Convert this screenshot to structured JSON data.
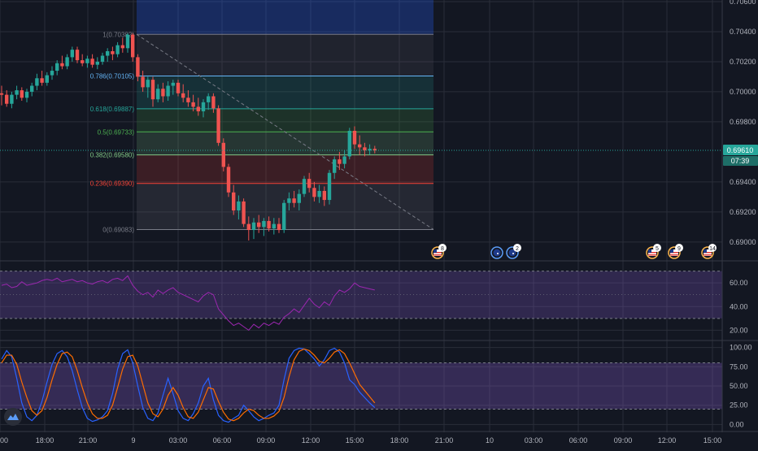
{
  "colors": {
    "background": "#131722",
    "grid": "#2a2e39",
    "bull": "#26a69a",
    "bear": "#ef5350",
    "rsi_line": "#9c27b0",
    "rsi_band": "#7e57c2",
    "stoch_k": "#2962ff",
    "stoch_d": "#ff6d00",
    "price_line": "#26a69a"
  },
  "chart_data": [
    {
      "type": "candlestick",
      "name": "price",
      "y_ticks": [
        "0.70600",
        "0.70400",
        "0.70200",
        "0.70000",
        "0.69800",
        "0.69400",
        "0.69200",
        "0.69000"
      ],
      "ylim": [
        0.6888,
        0.706
      ],
      "x_tick_labels": [
        "00",
        "18:00",
        "21:00",
        "9",
        "03:00",
        "06:00",
        "09:00",
        "12:00",
        "15:00",
        "18:00",
        "21:00",
        "10",
        "03:00",
        "06:00",
        "09:00",
        "12:00",
        "15:00"
      ],
      "current_price": "0.69610",
      "countdown": "07:39",
      "fib_levels": [
        {
          "label": "1(0.70382)",
          "ratio": 1,
          "price": 0.70382,
          "color": "#787b86"
        },
        {
          "label": "0.786(0.70105)",
          "ratio": 0.786,
          "price": 0.70105,
          "color": "#64b5f6"
        },
        {
          "label": "0.618(0.69887)",
          "ratio": 0.618,
          "price": 0.69887,
          "color": "#26a69a"
        },
        {
          "label": "0.5(0.69733)",
          "ratio": 0.5,
          "price": 0.69733,
          "color": "#4caf50"
        },
        {
          "label": "0.382(0.69580)",
          "ratio": 0.382,
          "price": 0.6958,
          "color": "#81c784"
        },
        {
          "label": "0.236(0.69390)",
          "ratio": 0.236,
          "price": 0.6939,
          "color": "#f44336"
        },
        {
          "label": "0(0.69083)",
          "ratio": 0,
          "price": 0.69083,
          "color": "#787b86"
        }
      ],
      "events": [
        {
          "flag": "us",
          "count": "8"
        },
        {
          "flag": "au",
          "count": ""
        },
        {
          "flag": "au",
          "count": "2"
        },
        {
          "flag": "us",
          "count": "5"
        },
        {
          "flag": "us",
          "count": "9"
        },
        {
          "flag": "us",
          "count": "14"
        }
      ],
      "candles": [
        [
          0.6999,
          0.7004,
          0.6991,
          0.6998
        ],
        [
          0.6998,
          0.7001,
          0.699,
          0.6992
        ],
        [
          0.6992,
          0.7,
          0.6989,
          0.6998
        ],
        [
          0.6998,
          0.7004,
          0.6995,
          0.7001
        ],
        [
          0.7001,
          0.7003,
          0.6994,
          0.6996
        ],
        [
          0.6996,
          0.7002,
          0.6993,
          0.7
        ],
        [
          0.7,
          0.7006,
          0.6997,
          0.7004
        ],
        [
          0.7004,
          0.7012,
          0.7001,
          0.7009
        ],
        [
          0.7009,
          0.7014,
          0.7004,
          0.7006
        ],
        [
          0.7006,
          0.7013,
          0.7004,
          0.7011
        ],
        [
          0.7011,
          0.7017,
          0.7008,
          0.7014
        ],
        [
          0.7014,
          0.7021,
          0.7011,
          0.7019
        ],
        [
          0.7019,
          0.7024,
          0.7015,
          0.7017
        ],
        [
          0.7017,
          0.7025,
          0.7015,
          0.7023
        ],
        [
          0.7023,
          0.703,
          0.702,
          0.7028
        ],
        [
          0.7028,
          0.703,
          0.7019,
          0.7021
        ],
        [
          0.7021,
          0.7025,
          0.7017,
          0.7019
        ],
        [
          0.7019,
          0.7024,
          0.7016,
          0.7022
        ],
        [
          0.7022,
          0.7025,
          0.7016,
          0.7018
        ],
        [
          0.7018,
          0.7023,
          0.7015,
          0.702
        ],
        [
          0.702,
          0.7026,
          0.7018,
          0.7024
        ],
        [
          0.7024,
          0.7029,
          0.702,
          0.7027
        ],
        [
          0.7027,
          0.703,
          0.7021,
          0.7025
        ],
        [
          0.7025,
          0.7033,
          0.7023,
          0.7031
        ],
        [
          0.7031,
          0.7036,
          0.7026,
          0.7029
        ],
        [
          0.7029,
          0.7039,
          0.7026,
          0.7038
        ],
        [
          0.7038,
          0.7039,
          0.702,
          0.7023
        ],
        [
          0.7023,
          0.7025,
          0.7007,
          0.701
        ],
        [
          0.701,
          0.7014,
          0.7,
          0.7003
        ],
        [
          0.7003,
          0.701,
          0.6996,
          0.7008
        ],
        [
          0.7008,
          0.701,
          0.699,
          0.6995
        ],
        [
          0.6995,
          0.7005,
          0.6993,
          0.7002
        ],
        [
          0.7002,
          0.7006,
          0.6993,
          0.6997
        ],
        [
          0.6997,
          0.7007,
          0.6994,
          0.7004
        ],
        [
          0.7004,
          0.7008,
          0.6998,
          0.7006
        ],
        [
          0.7006,
          0.7008,
          0.6997,
          0.6999
        ],
        [
          0.6999,
          0.7005,
          0.6993,
          0.6996
        ],
        [
          0.6996,
          0.7001,
          0.699,
          0.6993
        ],
        [
          0.6993,
          0.6998,
          0.6987,
          0.699
        ],
        [
          0.699,
          0.6996,
          0.6984,
          0.6987
        ],
        [
          0.6987,
          0.6995,
          0.6983,
          0.6993
        ],
        [
          0.6993,
          0.6999,
          0.6988,
          0.6997
        ],
        [
          0.6997,
          0.6999,
          0.6986,
          0.6989
        ],
        [
          0.6989,
          0.6991,
          0.6964,
          0.6966
        ],
        [
          0.6966,
          0.6969,
          0.6947,
          0.695
        ],
        [
          0.695,
          0.6952,
          0.693,
          0.6933
        ],
        [
          0.6933,
          0.6938,
          0.6918,
          0.6921
        ],
        [
          0.6921,
          0.6931,
          0.6915,
          0.6927
        ],
        [
          0.6927,
          0.6929,
          0.691,
          0.6912
        ],
        [
          0.6912,
          0.6917,
          0.6901,
          0.6908
        ],
        [
          0.6908,
          0.6916,
          0.6902,
          0.6913
        ],
        [
          0.6913,
          0.6918,
          0.6906,
          0.691
        ],
        [
          0.691,
          0.6916,
          0.6904,
          0.6914
        ],
        [
          0.6914,
          0.6917,
          0.6907,
          0.6909
        ],
        [
          0.6909,
          0.6916,
          0.6905,
          0.6912
        ],
        [
          0.6912,
          0.6916,
          0.6906,
          0.6908
        ],
        [
          0.6908,
          0.6928,
          0.6906,
          0.6926
        ],
        [
          0.6926,
          0.6933,
          0.6921,
          0.6929
        ],
        [
          0.6929,
          0.6934,
          0.6923,
          0.6926
        ],
        [
          0.6926,
          0.6935,
          0.6921,
          0.6932
        ],
        [
          0.6932,
          0.6944,
          0.693,
          0.6942
        ],
        [
          0.6942,
          0.6946,
          0.6933,
          0.6936
        ],
        [
          0.6936,
          0.694,
          0.6927,
          0.693
        ],
        [
          0.693,
          0.6938,
          0.6926,
          0.6934
        ],
        [
          0.6934,
          0.6937,
          0.6924,
          0.6928
        ],
        [
          0.6928,
          0.6948,
          0.6925,
          0.6946
        ],
        [
          0.6946,
          0.6957,
          0.6942,
          0.6955
        ],
        [
          0.6955,
          0.696,
          0.6948,
          0.6952
        ],
        [
          0.6952,
          0.6961,
          0.6949,
          0.6957
        ],
        [
          0.6957,
          0.6976,
          0.6955,
          0.6974
        ],
        [
          0.6974,
          0.6977,
          0.6962,
          0.6965
        ],
        [
          0.6965,
          0.6971,
          0.6958,
          0.6963
        ],
        [
          0.6963,
          0.6966,
          0.6957,
          0.6961
        ],
        [
          0.6961,
          0.6965,
          0.6958,
          0.6962
        ],
        [
          0.6962,
          0.6964,
          0.6959,
          0.6961
        ]
      ]
    },
    {
      "type": "line",
      "name": "RSI",
      "y_ticks": [
        "60.00",
        "40.00",
        "20.00"
      ],
      "ylim": [
        12,
        78
      ],
      "band": [
        30,
        70
      ],
      "values": [
        58,
        59,
        56,
        57,
        61,
        58,
        59,
        60,
        62,
        63,
        62,
        64,
        61,
        62,
        63,
        61,
        62,
        60,
        59,
        61,
        62,
        60,
        63,
        64,
        62,
        66,
        58,
        53,
        50,
        52,
        48,
        54,
        51,
        54,
        56,
        52,
        50,
        48,
        46,
        44,
        49,
        52,
        50,
        38,
        33,
        28,
        24,
        26,
        23,
        20,
        25,
        22,
        26,
        24,
        27,
        25,
        31,
        34,
        38,
        35,
        41,
        47,
        42,
        39,
        44,
        41,
        49,
        54,
        52,
        55,
        60,
        57,
        56,
        55,
        54
      ]
    },
    {
      "type": "line",
      "name": "Stoch",
      "y_ticks": [
        "100.00",
        "75.00",
        "50.00",
        "25.00",
        "0.00"
      ],
      "ylim": [
        -8,
        108
      ],
      "band": [
        20,
        80
      ],
      "k": [
        85,
        96,
        88,
        60,
        28,
        10,
        5,
        12,
        30,
        55,
        78,
        92,
        96,
        88,
        70,
        45,
        22,
        8,
        4,
        6,
        10,
        18,
        40,
        72,
        92,
        97,
        80,
        50,
        22,
        8,
        5,
        15,
        38,
        60,
        40,
        18,
        8,
        5,
        14,
        28,
        50,
        60,
        32,
        12,
        5,
        3,
        8,
        12,
        25,
        18,
        10,
        5,
        8,
        12,
        15,
        25,
        58,
        86,
        96,
        99,
        98,
        92,
        85,
        76,
        84,
        96,
        99,
        94,
        80,
        58,
        52,
        42,
        35,
        28,
        22
      ],
      "d": [
        80,
        90,
        90,
        78,
        55,
        35,
        18,
        12,
        18,
        35,
        58,
        78,
        92,
        94,
        88,
        70,
        48,
        28,
        14,
        8,
        8,
        12,
        25,
        48,
        72,
        88,
        90,
        76,
        52,
        28,
        14,
        10,
        20,
        38,
        48,
        38,
        22,
        10,
        8,
        16,
        32,
        48,
        46,
        30,
        16,
        7,
        5,
        8,
        15,
        20,
        18,
        12,
        8,
        8,
        11,
        17,
        35,
        62,
        84,
        95,
        98,
        96,
        90,
        82,
        80,
        86,
        94,
        97,
        92,
        80,
        66,
        52,
        44,
        36,
        28
      ]
    }
  ]
}
